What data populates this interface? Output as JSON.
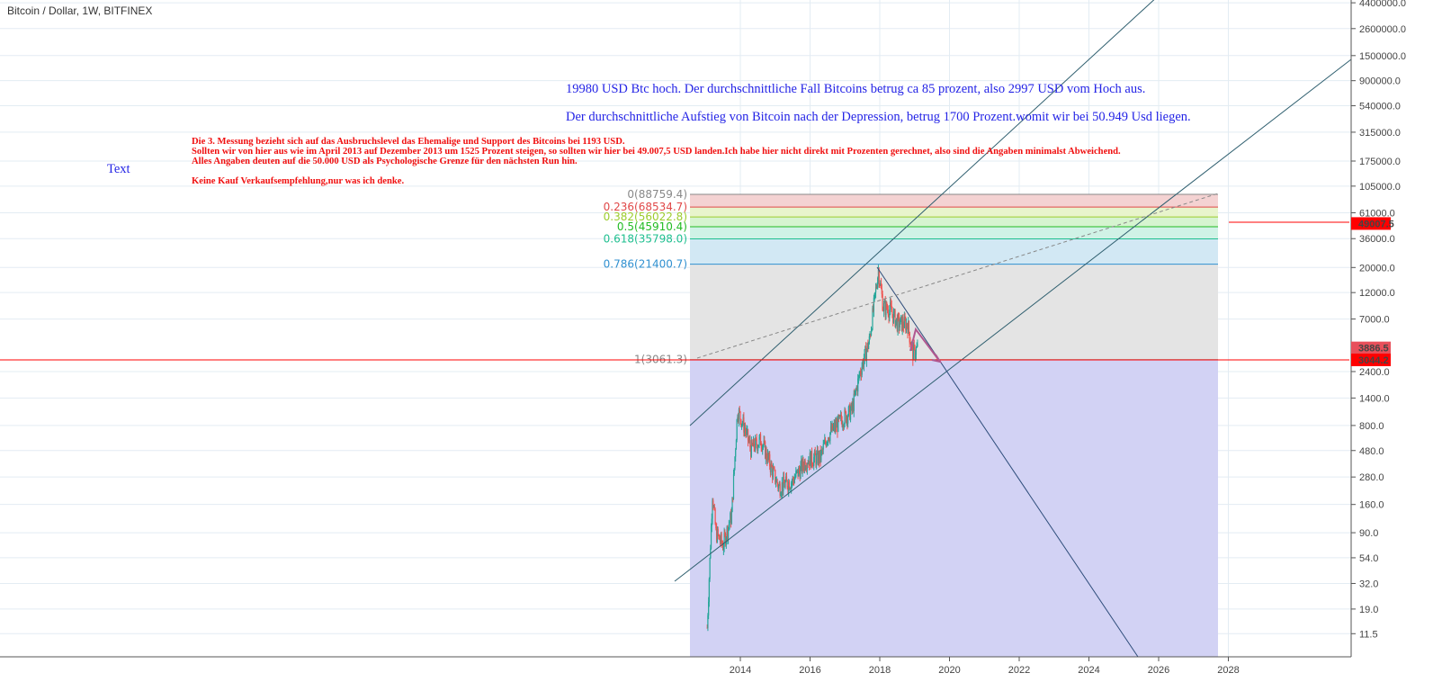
{
  "header": {
    "title": "Bitcoin / Dollar, 1W, BITFINEX"
  },
  "notes": {
    "blue1": "19980 USD Btc hoch. Der durchschnittliche Fall Bitcoins betrug ca 85 prozent, also 2997 USD vom Hoch aus.",
    "blue2": "Der durchschnittliche Aufstieg von Bitcoin nach der Depression, betrug 1700 Prozent.womit wir bei 50.949 Usd liegen.",
    "text_label": "Text",
    "red": "Die 3. Messung bezieht sich auf das Ausbruchslevel das Ehemalige und Support des Bitcoins bei 1193 USD.\nSollten wir von hier aus wie im April 2013 auf Dezember 2013 um 1525 Prozent steigen, so sollten wir hier bei 49.007,5 USD landen.Ich habe hier nicht direkt mit Prozenten gerechnet, also sind die Angaben minimalst Abweichend.\nAlles Angaben deuten auf die 50.000 USD als Psychologische Grenze für den nächsten Run hin.\n\nKeine Kauf Verkaufsempfehlung,nur was ich denke."
  },
  "fib_levels": [
    {
      "label": "0(88759.4)",
      "value": 88759.4,
      "color": "#888888"
    },
    {
      "label": "0.236(68534.7)",
      "value": 68534.7,
      "color": "#e04848"
    },
    {
      "label": "0.382(56022.8)",
      "value": 56022.8,
      "color": "#9ccc2c"
    },
    {
      "label": "0.5(45910.4)",
      "value": 45910.4,
      "color": "#22bb22"
    },
    {
      "label": "0.618(35798.0)",
      "value": 35798.0,
      "color": "#1fbf8f"
    },
    {
      "label": "0.786(21400.7)",
      "value": 21400.7,
      "color": "#3090d0"
    },
    {
      "label": "1(3061.3)",
      "value": 3061.3,
      "color": "#888888"
    }
  ],
  "y_axis": {
    "scale": "log",
    "ticks": [
      "4400000.0",
      "2600000.0",
      "1500000.0",
      "900000.0",
      "540000.0",
      "315000.0",
      "175000.0",
      "105000.0",
      "61000.0",
      "36000.0",
      "20000.0",
      "12000.0",
      "7000.0",
      "2400.0",
      "1400.0",
      "800.0",
      "480.0",
      "280.0",
      "160.0",
      "90.0",
      "54.0",
      "32.0",
      "19.0",
      "11.5"
    ]
  },
  "x_axis": {
    "ticks": [
      "2014",
      "2016",
      "2018",
      "2020",
      "2022",
      "2024",
      "2026",
      "2028"
    ]
  },
  "price_badges": [
    {
      "label": "49007.5",
      "value": 49007.5,
      "color": "#ff0000"
    },
    {
      "label": "3886.5",
      "value": 3886.5,
      "color": "#e8505b"
    },
    {
      "label": "3044.2",
      "value": 3044.2,
      "color": "#ff0000"
    }
  ],
  "chart_data": {
    "type": "candlestick",
    "symbol": "BTCUSD",
    "interval": "1W",
    "price_path": [
      [
        2013.05,
        13
      ],
      [
        2013.2,
        200
      ],
      [
        2013.3,
        90
      ],
      [
        2013.5,
        70
      ],
      [
        2013.75,
        130
      ],
      [
        2013.92,
        1100
      ],
      [
        2014.1,
        800
      ],
      [
        2014.3,
        500
      ],
      [
        2014.6,
        600
      ],
      [
        2014.9,
        330
      ],
      [
        2015.1,
        230
      ],
      [
        2015.5,
        260
      ],
      [
        2015.9,
        400
      ],
      [
        2016.3,
        420
      ],
      [
        2016.5,
        650
      ],
      [
        2016.9,
        900
      ],
      [
        2017.2,
        1100
      ],
      [
        2017.45,
        2500
      ],
      [
        2017.7,
        4500
      ],
      [
        2017.96,
        19000
      ],
      [
        2018.1,
        9000
      ],
      [
        2018.3,
        8500
      ],
      [
        2018.5,
        6500
      ],
      [
        2018.8,
        6300
      ],
      [
        2018.95,
        3500
      ],
      [
        2019.1,
        3900
      ]
    ]
  }
}
